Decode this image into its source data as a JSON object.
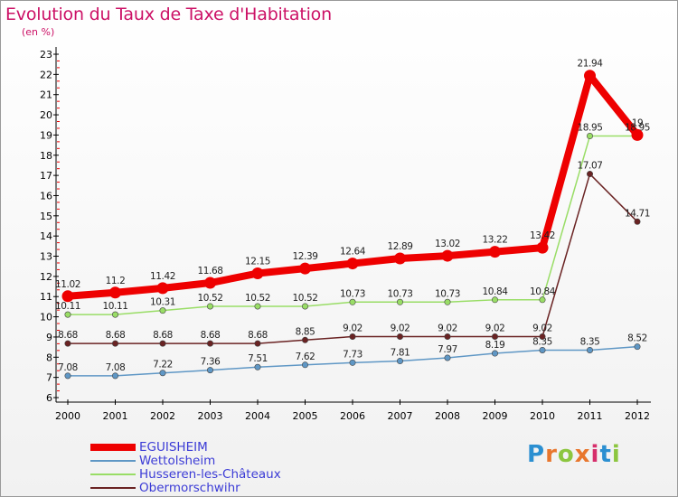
{
  "header": {
    "title": "Evolution du Taux de Taxe d'Habitation",
    "subtitle": "(en %)"
  },
  "logo": {
    "letters": [
      "P",
      "r",
      "o",
      "x",
      "i",
      "t",
      "i"
    ],
    "colors": [
      "#2b8fd1",
      "#e8762d",
      "#8cc63f",
      "#e8762d",
      "#d62f6c",
      "#2b8fd1",
      "#8cc63f"
    ]
  },
  "colors": {
    "eguisheim": "#ee0000",
    "wettolsheim": "#5f97c5",
    "husseren": "#99dd66",
    "obermorschwihr": "#6a2323"
  },
  "chart_data": {
    "type": "line",
    "title": "Evolution du Taux de Taxe d'Habitation",
    "ylabel": "(en %)",
    "x": [
      "2000",
      "2001",
      "2002",
      "2003",
      "2004",
      "2005",
      "2006",
      "2007",
      "2008",
      "2009",
      "2010",
      "2011",
      "2012"
    ],
    "ylim": [
      6,
      23
    ],
    "yticks": [
      "6",
      "7",
      "8",
      "9",
      "10",
      "11",
      "12",
      "13",
      "14",
      "15",
      "16",
      "17",
      "18",
      "19",
      "20",
      "21",
      "22",
      "23"
    ],
    "series": [
      {
        "name": "EGUISHEIM",
        "values": [
          11.02,
          11.2,
          11.42,
          11.68,
          12.15,
          12.39,
          12.64,
          12.89,
          13.02,
          13.22,
          13.42,
          21.94,
          19
        ],
        "labels": [
          "11.02",
          "11.2",
          "11.42",
          "11.68",
          "12.15",
          "12.39",
          "12.64",
          "12.89",
          "13.02",
          "13.22",
          "13.42",
          "21.94",
          "19"
        ]
      },
      {
        "name": "Wettolsheim",
        "values": [
          7.08,
          7.08,
          7.22,
          7.36,
          7.51,
          7.62,
          7.73,
          7.81,
          7.97,
          8.19,
          8.35,
          8.35,
          8.52
        ],
        "labels": [
          "7.08",
          "7.08",
          "7.22",
          "7.36",
          "7.51",
          "7.62",
          "7.73",
          "7.81",
          "7.97",
          "8.19",
          "8.35",
          "8.35",
          "8.52"
        ]
      },
      {
        "name": "Husseren-les-Châteaux",
        "values": [
          10.11,
          10.11,
          10.31,
          10.52,
          10.52,
          10.52,
          10.73,
          10.73,
          10.73,
          10.84,
          10.84,
          18.95,
          18.95
        ],
        "labels": [
          "10.11",
          "10.11",
          "10.31",
          "10.52",
          "10.52",
          "10.52",
          "10.73",
          "10.73",
          "10.73",
          "10.84",
          "10.84",
          "18.95",
          "18.95"
        ]
      },
      {
        "name": "Obermorschwihr",
        "values": [
          8.68,
          8.68,
          8.68,
          8.68,
          8.68,
          8.85,
          9.02,
          9.02,
          9.02,
          9.02,
          9.02,
          17.07,
          14.71
        ],
        "labels": [
          "8.68",
          "8.68",
          "8.68",
          "8.68",
          "8.68",
          "8.85",
          "9.02",
          "9.02",
          "9.02",
          "9.02",
          "9.02",
          "17.07",
          "14.71"
        ]
      }
    ],
    "legend": [
      "EGUISHEIM",
      "Wettolsheim",
      "Husseren-les-Châteaux",
      "Obermorschwihr"
    ],
    "legend_position": "bottom-left",
    "grid": false
  }
}
